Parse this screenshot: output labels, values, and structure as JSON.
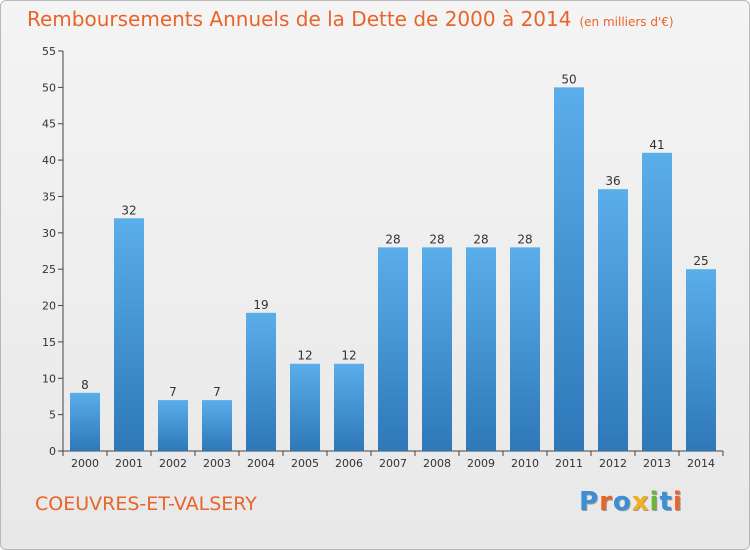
{
  "title": {
    "main": "Remboursements Annuels de la Dette de 2000 à 2014",
    "unit": "(en milliers d'€)"
  },
  "commune": "COEUVRES-ET-VALSERY",
  "logo": {
    "letters": [
      {
        "ch": "P",
        "color": "#3a8fd8"
      },
      {
        "ch": "r",
        "color": "#e8642a"
      },
      {
        "ch": "o",
        "color": "#3a8fd8"
      },
      {
        "ch": "x",
        "color": "#f0b020"
      },
      {
        "ch": "i",
        "color": "#6db33f"
      },
      {
        "ch": "t",
        "color": "#3a8fd8"
      },
      {
        "ch": "i",
        "color": "#e8642a"
      }
    ]
  },
  "colors": {
    "accent": "#e8642a",
    "bar_top": "#5aaeea",
    "bar_bottom": "#2e78b8",
    "axis": "#444444"
  },
  "chart_data": {
    "type": "bar",
    "title": "Remboursements Annuels de la Dette de 2000 à 2014",
    "xlabel": "",
    "ylabel": "",
    "categories": [
      "2000",
      "2001",
      "2002",
      "2003",
      "2004",
      "2005",
      "2006",
      "2007",
      "2008",
      "2009",
      "2010",
      "2011",
      "2012",
      "2013",
      "2014"
    ],
    "values": [
      8,
      32,
      7,
      7,
      19,
      12,
      12,
      28,
      28,
      28,
      28,
      50,
      36,
      41,
      25
    ],
    "ylim": [
      0,
      55
    ],
    "yticks": [
      0,
      5,
      10,
      15,
      20,
      25,
      30,
      35,
      40,
      45,
      50,
      55
    ],
    "grid": false
  }
}
